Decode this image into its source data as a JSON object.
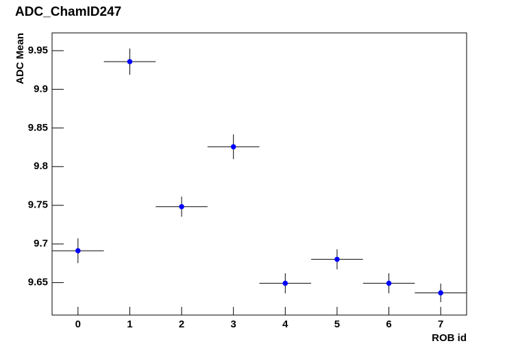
{
  "chart_data": {
    "type": "errorbar",
    "title": "ADC_ChamID247",
    "xlabel": "ROB id",
    "ylabel": "ADC Mean",
    "x": [
      0,
      1,
      2,
      3,
      4,
      5,
      6,
      7
    ],
    "x_errors": [
      0.5,
      0.5,
      0.5,
      0.5,
      0.5,
      0.5,
      0.5,
      0.5
    ],
    "values": [
      9.6912,
      9.9358,
      9.7482,
      9.8257,
      9.6491,
      9.6801,
      9.6491,
      9.6367
    ],
    "errors": [
      0.016,
      0.017,
      0.013,
      0.016,
      0.013,
      0.013,
      0.013,
      0.012
    ],
    "color": "#0000ff",
    "xlim": [
      -0.5,
      7.5
    ],
    "xticks": [
      0,
      1,
      2,
      3,
      4,
      5,
      6,
      7
    ],
    "ylim": [
      9.608,
      9.973
    ],
    "yticks": [
      9.65,
      9.7,
      9.75,
      9.8,
      9.85,
      9.9,
      9.95
    ]
  }
}
